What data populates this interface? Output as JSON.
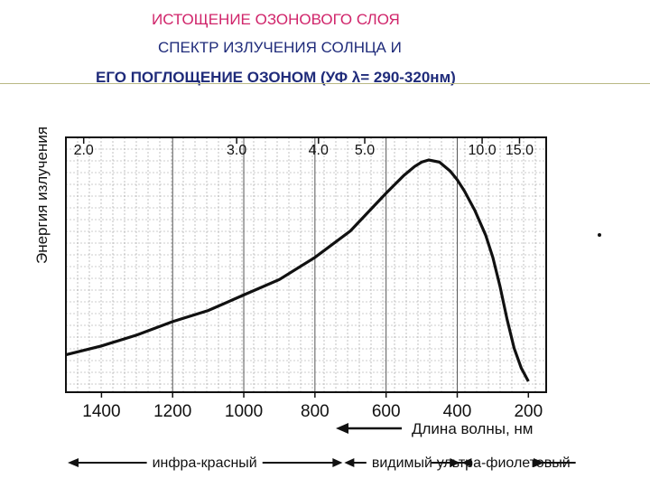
{
  "slide": {
    "title_line1": "ИСТОЩЕНИЕ ОЗОНОВОГО СЛОЯ",
    "title_line2": "СПЕКТР ИЗЛУЧЕНИЯ СОЛНЦА И",
    "title_line3": "ЕГО ПОГЛОЩЕНИЕ ОЗОНОМ (УФ λ= 290-320нм)"
  },
  "colors": {
    "title_pink": "#d0246a",
    "title_blue": "#1f2b7a",
    "rule": "#b9b884",
    "ink": "#111111"
  },
  "chart_data": {
    "type": "line",
    "title": "",
    "ylabel": "Энергия излучения",
    "xlabel": "Длина волны, нм",
    "x_axis_reversed": true,
    "xlim": [
      1500,
      150
    ],
    "ylim": [
      0,
      1
    ],
    "bottom_ticks": [
      1400,
      1200,
      1000,
      800,
      600,
      400,
      200
    ],
    "top_ticks": [
      {
        "label": "2.0",
        "wavelength": 1450
      },
      {
        "label": "3.0",
        "wavelength": 1020
      },
      {
        "label": "4.0",
        "wavelength": 790
      },
      {
        "label": "5.0",
        "wavelength": 660
      },
      {
        "label": "10.0",
        "wavelength": 330
      },
      {
        "label": "15.0",
        "wavelength": 225
      }
    ],
    "grid": true,
    "series": [
      {
        "x": [
          1500,
          1400,
          1300,
          1200,
          1100,
          1000,
          900,
          800,
          700,
          600,
          550,
          520,
          500,
          480,
          450,
          420,
          400,
          380,
          350,
          320,
          300,
          280,
          260,
          240,
          220,
          200
        ],
        "y": [
          0.12,
          0.16,
          0.21,
          0.27,
          0.32,
          0.39,
          0.46,
          0.56,
          0.68,
          0.85,
          0.93,
          0.97,
          0.99,
          1.0,
          0.99,
          0.95,
          0.91,
          0.86,
          0.77,
          0.66,
          0.56,
          0.43,
          0.28,
          0.15,
          0.06,
          0.0
        ]
      }
    ],
    "regions": [
      {
        "label": "инфра-красный",
        "from": 1500,
        "to": 720
      },
      {
        "label": "видимый",
        "from": 720,
        "to": 390
      },
      {
        "label": "ультра-фиолетовый",
        "from": 390,
        "to": 150
      }
    ]
  }
}
